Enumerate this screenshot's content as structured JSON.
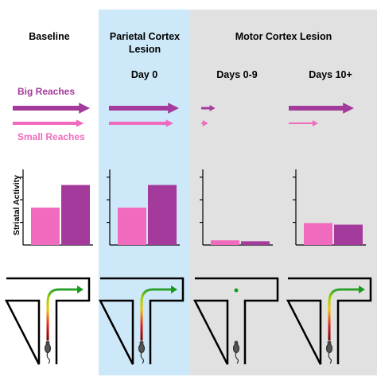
{
  "colors": {
    "big": "#a43a9b",
    "small": "#f06bbd",
    "parietal_bg": "#cde8f8",
    "motor_bg": "#e1e1e1",
    "wall": "#000000",
    "arrow_tip": "#1a9a20"
  },
  "columns": [
    {
      "id": "baseline",
      "header": "Baseline",
      "subheader": ""
    },
    {
      "id": "parietal",
      "header": "Parietal Cortex Lesion",
      "subheader": "Day 0"
    },
    {
      "id": "motor_0_9",
      "header": "",
      "subheader": "Days 0-9"
    },
    {
      "id": "motor_10",
      "header": "",
      "subheader": "Days 10+"
    }
  ],
  "motor_header": "Motor Cortex Lesion",
  "legend": {
    "big_label": "Big Reaches",
    "small_label": "Small Reaches"
  },
  "reach_arrows": [
    {
      "column": "baseline",
      "big": 1.0,
      "small": 0.92
    },
    {
      "column": "parietal",
      "big": 1.0,
      "small": 0.92
    },
    {
      "column": "motor_0_9",
      "big": 0.2,
      "small": 0.1
    },
    {
      "column": "motor_10",
      "big": 1.0,
      "small": 0.45
    }
  ],
  "chart_data": {
    "type": "bar",
    "ylabel": "Striatal Activity",
    "ylim": [
      0,
      3
    ],
    "categories": [
      "Baseline",
      "Parietal Cortex Lesion Day 0",
      "Motor Cortex Lesion Days 0-9",
      "Motor Cortex Lesion Days 10+"
    ],
    "series": [
      {
        "name": "Small Reaches",
        "values": [
          1.62,
          1.62,
          0.2,
          0.95
        ]
      },
      {
        "name": "Big Reaches",
        "values": [
          2.6,
          2.6,
          0.16,
          0.88
        ]
      }
    ]
  },
  "trajectories": [
    {
      "column": "baseline",
      "path_type": "curved-right"
    },
    {
      "column": "parietal",
      "path_type": "curved-right"
    },
    {
      "column": "motor_0_9",
      "path_type": "straight-short"
    },
    {
      "column": "motor_10",
      "path_type": "curved-right"
    }
  ]
}
